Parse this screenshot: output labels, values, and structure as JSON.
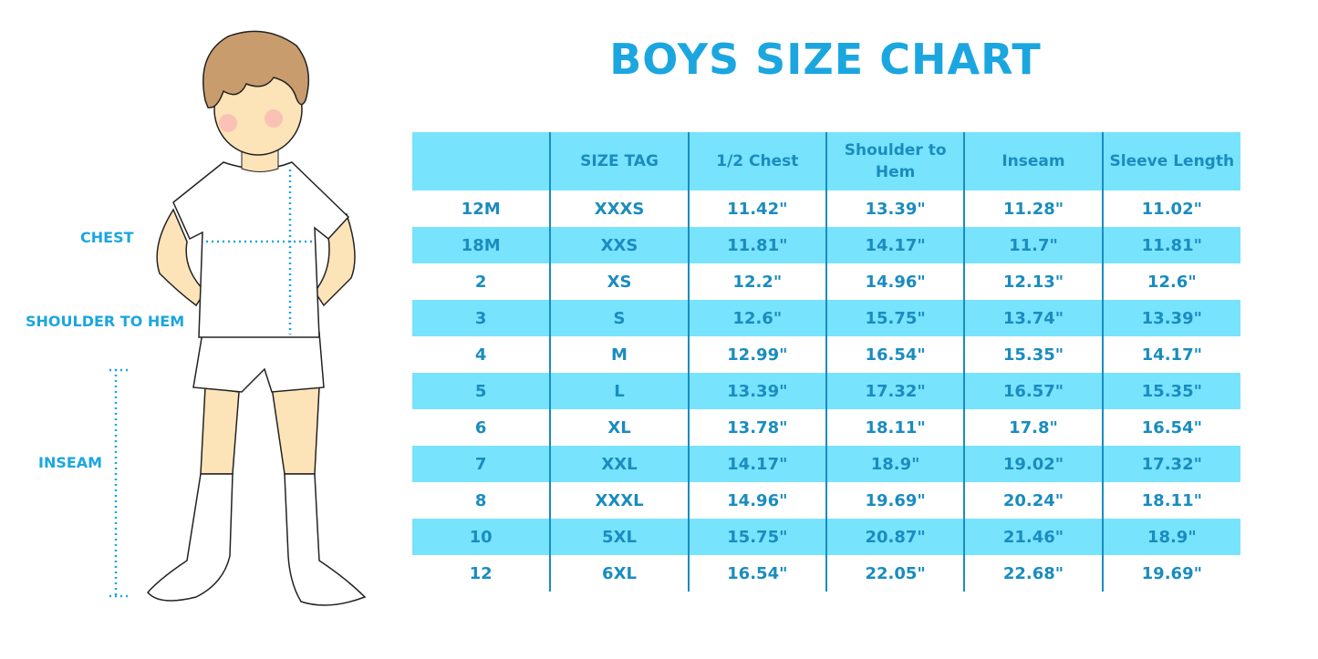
{
  "title": "BOYS SIZE CHART",
  "measure_labels": {
    "chest": "CHEST",
    "shoulder_to_hem": "SHOULDER TO HEM",
    "inseam": "INSEAM"
  },
  "colors": {
    "header_bg": "#78e3fd",
    "text": "#1a8cbf",
    "title": "#1ba6e0"
  },
  "table": {
    "headers": [
      "",
      "SIZE TAG",
      "1/2 Chest",
      "Shoulder to Hem",
      "Inseam",
      "Sleeve Length"
    ],
    "rows": [
      [
        "12M",
        "XXXS",
        "11.42\"",
        "13.39\"",
        "11.28\"",
        "11.02\""
      ],
      [
        "18M",
        "XXS",
        "11.81\"",
        "14.17\"",
        "11.7\"",
        "11.81\""
      ],
      [
        "2",
        "XS",
        "12.2\"",
        "14.96\"",
        "12.13\"",
        "12.6\""
      ],
      [
        "3",
        "S",
        "12.6\"",
        "15.75\"",
        "13.74\"",
        "13.39\""
      ],
      [
        "4",
        "M",
        "12.99\"",
        "16.54\"",
        "15.35\"",
        "14.17\""
      ],
      [
        "5",
        "L",
        "13.39\"",
        "17.32\"",
        "16.57\"",
        "15.35\""
      ],
      [
        "6",
        "XL",
        "13.78\"",
        "18.11\"",
        "17.8\"",
        "16.54\""
      ],
      [
        "7",
        "XXL",
        "14.17\"",
        "18.9\"",
        "19.02\"",
        "17.32\""
      ],
      [
        "8",
        "XXXL",
        "14.96\"",
        "19.69\"",
        "20.24\"",
        "18.11\""
      ],
      [
        "10",
        "5XL",
        "15.75\"",
        "20.87\"",
        "21.46\"",
        "18.9\""
      ],
      [
        "12",
        "6XL",
        "16.54\"",
        "22.05\"",
        "22.68\"",
        "19.69\""
      ]
    ]
  }
}
